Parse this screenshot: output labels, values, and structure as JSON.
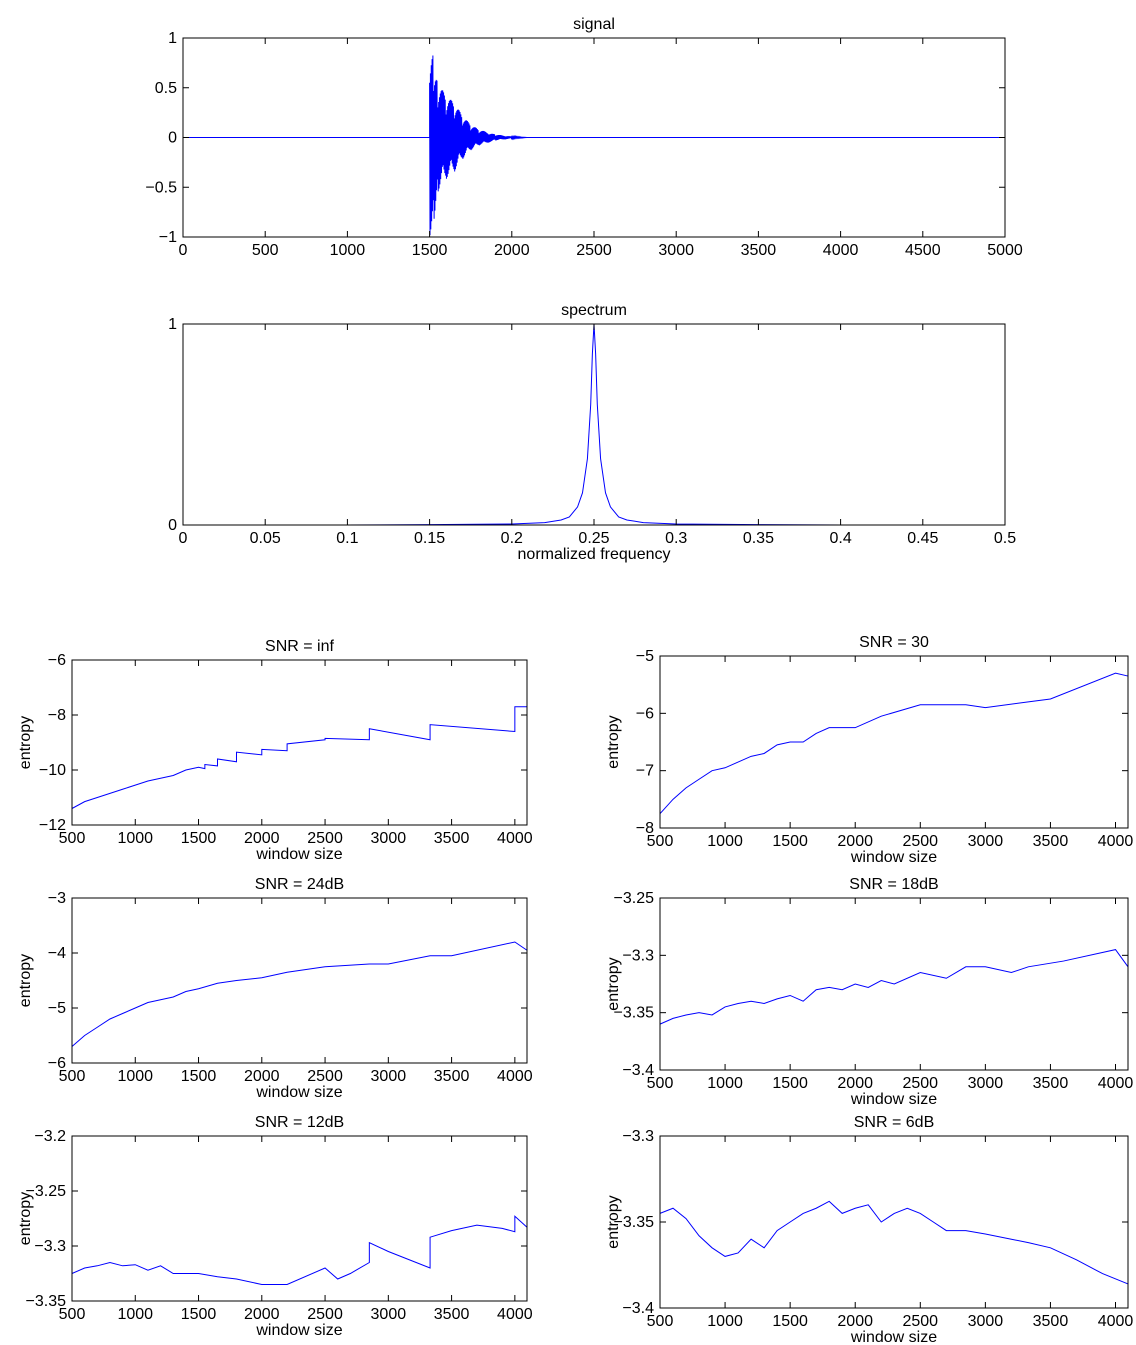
{
  "chart_data": [
    {
      "id": "signal",
      "type": "line",
      "title": "signal",
      "xlabel": "",
      "ylabel": "",
      "xlim": [
        0,
        5000
      ],
      "ylim": [
        -1,
        1
      ],
      "xticks": [
        0,
        500,
        1000,
        1500,
        2000,
        2500,
        3000,
        3500,
        4000,
        4500,
        5000
      ],
      "yticks": [
        -1,
        -0.5,
        0,
        0.5,
        1
      ],
      "xtick_labels": [
        "0",
        "500",
        "1000",
        "1500",
        "2000",
        "2500",
        "3000",
        "3500",
        "4000",
        "4500",
        "5000"
      ],
      "ytick_labels": [
        "−1",
        "−0.5",
        "0",
        "0.5",
        "1"
      ],
      "grid": false,
      "color": "#0000ff",
      "series": [
        {
          "kind": "decaying_oscillation",
          "x": [
            0,
            1500,
            1500,
            1525,
            1550,
            1600,
            1650,
            1700,
            1750,
            1800,
            1900,
            2000,
            2100,
            5000
          ],
          "envelope": [
            0,
            0,
            1.0,
            0.85,
            0.55,
            0.42,
            0.35,
            0.22,
            0.13,
            0.08,
            0.03,
            0.01,
            0.0,
            0.0
          ]
        }
      ]
    },
    {
      "id": "spectrum",
      "type": "line",
      "title": "spectrum",
      "xlabel": "normalized frequency",
      "ylabel": "",
      "xlim": [
        0,
        0.5
      ],
      "ylim": [
        0,
        1
      ],
      "xticks": [
        0,
        0.05,
        0.1,
        0.15,
        0.2,
        0.25,
        0.3,
        0.35,
        0.4,
        0.45,
        0.5
      ],
      "yticks": [
        0,
        1
      ],
      "xtick_labels": [
        "0",
        "0.05",
        "0.1",
        "0.15",
        "0.2",
        "0.25",
        "0.3",
        "0.35",
        "0.4",
        "0.45",
        "0.5"
      ],
      "ytick_labels": [
        "0",
        "1"
      ],
      "grid": false,
      "color": "#0000ff",
      "series": [
        {
          "x": [
            0,
            0.1,
            0.15,
            0.2,
            0.22,
            0.23,
            0.235,
            0.24,
            0.243,
            0.246,
            0.248,
            0.249,
            0.25,
            0.251,
            0.252,
            0.254,
            0.257,
            0.26,
            0.265,
            0.27,
            0.28,
            0.3,
            0.35,
            0.4,
            0.5
          ],
          "y": [
            0,
            0,
            0.002,
            0.005,
            0.012,
            0.025,
            0.04,
            0.09,
            0.16,
            0.33,
            0.6,
            0.85,
            1.0,
            0.85,
            0.6,
            0.33,
            0.16,
            0.09,
            0.04,
            0.025,
            0.012,
            0.005,
            0.002,
            0,
            0
          ]
        }
      ]
    },
    {
      "id": "snr-inf",
      "type": "line",
      "title": "SNR = inf",
      "xlabel": "window size",
      "ylabel": "entropy",
      "xlim": [
        500,
        4096
      ],
      "ylim": [
        -12,
        -6
      ],
      "xticks": [
        500,
        1000,
        1500,
        2000,
        2500,
        3000,
        3500,
        4000
      ],
      "yticks": [
        -12,
        -10,
        -8,
        -6
      ],
      "xtick_labels": [
        "500",
        "1000",
        "1500",
        "2000",
        "2500",
        "3000",
        "3500",
        "4000"
      ],
      "ytick_labels": [
        "−12",
        "−10",
        "−8",
        "−6"
      ],
      "grid": false,
      "color": "#0000ff",
      "series": [
        {
          "x": [
            500,
            600,
            700,
            800,
            900,
            1000,
            1100,
            1200,
            1300,
            1400,
            1500,
            1550,
            1550,
            1650,
            1650,
            1800,
            1800,
            2000,
            2000,
            2200,
            2200,
            2500,
            2500,
            2850,
            2850,
            3330,
            3330,
            4000,
            4000,
            4096
          ],
          "y": [
            -11.4,
            -11.15,
            -11.0,
            -10.85,
            -10.7,
            -10.55,
            -10.4,
            -10.3,
            -10.2,
            -10.0,
            -9.9,
            -9.95,
            -9.8,
            -9.85,
            -9.6,
            -9.7,
            -9.35,
            -9.45,
            -9.25,
            -9.3,
            -9.05,
            -8.9,
            -8.85,
            -8.9,
            -8.5,
            -8.9,
            -8.35,
            -8.6,
            -7.7,
            -7.7
          ]
        }
      ]
    },
    {
      "id": "snr-30",
      "type": "line",
      "title": "SNR = 30",
      "xlabel": "window size",
      "ylabel": "entropy",
      "xlim": [
        500,
        4096
      ],
      "ylim": [
        -8,
        -5
      ],
      "xticks": [
        500,
        1000,
        1500,
        2000,
        2500,
        3000,
        3500,
        4000
      ],
      "yticks": [
        -8,
        -7,
        -6,
        -5
      ],
      "xtick_labels": [
        "500",
        "1000",
        "1500",
        "2000",
        "2500",
        "3000",
        "3500",
        "4000"
      ],
      "ytick_labels": [
        "−8",
        "−7",
        "−6",
        "−5"
      ],
      "grid": false,
      "color": "#0000ff",
      "series": [
        {
          "x": [
            500,
            600,
            700,
            800,
            900,
            1000,
            1100,
            1200,
            1300,
            1400,
            1500,
            1600,
            1700,
            1800,
            2000,
            2200,
            2500,
            2850,
            3000,
            3330,
            3500,
            4000,
            4096
          ],
          "y": [
            -7.75,
            -7.5,
            -7.3,
            -7.15,
            -7.0,
            -6.95,
            -6.85,
            -6.75,
            -6.7,
            -6.55,
            -6.5,
            -6.5,
            -6.35,
            -6.25,
            -6.25,
            -6.05,
            -5.85,
            -5.85,
            -5.9,
            -5.8,
            -5.75,
            -5.3,
            -5.35
          ]
        }
      ]
    },
    {
      "id": "snr-24db",
      "type": "line",
      "title": "SNR = 24dB",
      "xlabel": "window size",
      "ylabel": "entropy",
      "xlim": [
        500,
        4096
      ],
      "ylim": [
        -6,
        -3
      ],
      "xticks": [
        500,
        1000,
        1500,
        2000,
        2500,
        3000,
        3500,
        4000
      ],
      "yticks": [
        -6,
        -5,
        -4,
        -3
      ],
      "xtick_labels": [
        "500",
        "1000",
        "1500",
        "2000",
        "2500",
        "3000",
        "3500",
        "4000"
      ],
      "ytick_labels": [
        "−6",
        "−5",
        "−4",
        "−3"
      ],
      "grid": false,
      "color": "#0000ff",
      "series": [
        {
          "x": [
            500,
            600,
            700,
            800,
            900,
            1000,
            1100,
            1200,
            1300,
            1400,
            1500,
            1650,
            1800,
            2000,
            2200,
            2500,
            2850,
            3000,
            3330,
            3500,
            4000,
            4096
          ],
          "y": [
            -5.7,
            -5.5,
            -5.35,
            -5.2,
            -5.1,
            -5.0,
            -4.9,
            -4.85,
            -4.8,
            -4.7,
            -4.65,
            -4.55,
            -4.5,
            -4.45,
            -4.35,
            -4.25,
            -4.2,
            -4.2,
            -4.05,
            -4.05,
            -3.8,
            -3.95
          ]
        }
      ]
    },
    {
      "id": "snr-18db",
      "type": "line",
      "title": "SNR = 18dB",
      "xlabel": "window size",
      "ylabel": "entropy",
      "xlim": [
        500,
        4096
      ],
      "ylim": [
        -3.4,
        -3.25
      ],
      "xticks": [
        500,
        1000,
        1500,
        2000,
        2500,
        3000,
        3500,
        4000
      ],
      "yticks": [
        -3.4,
        -3.35,
        -3.3,
        -3.25
      ],
      "xtick_labels": [
        "500",
        "1000",
        "1500",
        "2000",
        "2500",
        "3000",
        "3500",
        "4000"
      ],
      "ytick_labels": [
        "−3.4",
        "−3.35",
        "−3.3",
        "−3.25"
      ],
      "grid": false,
      "color": "#0000ff",
      "series": [
        {
          "x": [
            500,
            600,
            700,
            800,
            900,
            1000,
            1100,
            1200,
            1300,
            1400,
            1500,
            1600,
            1700,
            1800,
            1900,
            2000,
            2100,
            2200,
            2300,
            2500,
            2700,
            2850,
            3000,
            3200,
            3330,
            3600,
            4000,
            4096
          ],
          "y": [
            -3.36,
            -3.355,
            -3.352,
            -3.35,
            -3.352,
            -3.345,
            -3.342,
            -3.34,
            -3.342,
            -3.338,
            -3.335,
            -3.34,
            -3.33,
            -3.328,
            -3.33,
            -3.325,
            -3.328,
            -3.322,
            -3.325,
            -3.315,
            -3.32,
            -3.31,
            -3.31,
            -3.315,
            -3.31,
            -3.305,
            -3.295,
            -3.31
          ]
        }
      ]
    },
    {
      "id": "snr-12db",
      "type": "line",
      "title": "SNR = 12dB",
      "xlabel": "window size",
      "ylabel": "entropy",
      "xlim": [
        500,
        4096
      ],
      "ylim": [
        -3.35,
        -3.2
      ],
      "xticks": [
        500,
        1000,
        1500,
        2000,
        2500,
        3000,
        3500,
        4000
      ],
      "yticks": [
        -3.35,
        -3.3,
        -3.25,
        -3.2
      ],
      "xtick_labels": [
        "500",
        "1000",
        "1500",
        "2000",
        "2500",
        "3000",
        "3500",
        "4000"
      ],
      "ytick_labels": [
        "−3.35",
        "−3.3",
        "−3.25",
        "−3.2"
      ],
      "grid": false,
      "color": "#0000ff",
      "series": [
        {
          "x": [
            500,
            600,
            700,
            800,
            900,
            1000,
            1100,
            1200,
            1300,
            1500,
            1650,
            1800,
            2000,
            2200,
            2500,
            2600,
            2700,
            2850,
            2850,
            3000,
            3330,
            3330,
            3500,
            3700,
            3900,
            4000,
            4000,
            4096
          ],
          "y": [
            -3.325,
            -3.32,
            -3.318,
            -3.315,
            -3.318,
            -3.317,
            -3.322,
            -3.318,
            -3.325,
            -3.325,
            -3.328,
            -3.33,
            -3.335,
            -3.335,
            -3.32,
            -3.33,
            -3.325,
            -3.315,
            -3.297,
            -3.305,
            -3.32,
            -3.292,
            -3.286,
            -3.281,
            -3.284,
            -3.287,
            -3.273,
            -3.283
          ]
        }
      ]
    },
    {
      "id": "snr-6db",
      "type": "line",
      "title": "SNR = 6dB",
      "xlabel": "window size",
      "ylabel": "entropy",
      "xlim": [
        500,
        4096
      ],
      "ylim": [
        -3.4,
        -3.3
      ],
      "xticks": [
        500,
        1000,
        1500,
        2000,
        2500,
        3000,
        3500,
        4000
      ],
      "yticks": [
        -3.4,
        -3.35,
        -3.3
      ],
      "xtick_labels": [
        "500",
        "1000",
        "1500",
        "2000",
        "2500",
        "3000",
        "3500",
        "4000"
      ],
      "ytick_labels": [
        "−3.4",
        "−3.35",
        "−3.3"
      ],
      "grid": false,
      "color": "#0000ff",
      "series": [
        {
          "x": [
            500,
            600,
            700,
            800,
            900,
            1000,
            1100,
            1200,
            1300,
            1400,
            1500,
            1600,
            1700,
            1800,
            1900,
            2000,
            2100,
            2200,
            2300,
            2400,
            2500,
            2600,
            2700,
            2850,
            3000,
            3200,
            3330,
            3500,
            3700,
            3900,
            4096
          ],
          "y": [
            -3.345,
            -3.342,
            -3.348,
            -3.358,
            -3.365,
            -3.37,
            -3.368,
            -3.36,
            -3.365,
            -3.355,
            -3.35,
            -3.345,
            -3.342,
            -3.338,
            -3.345,
            -3.342,
            -3.34,
            -3.35,
            -3.345,
            -3.342,
            -3.345,
            -3.35,
            -3.355,
            -3.355,
            -3.357,
            -3.36,
            -3.362,
            -3.365,
            -3.372,
            -3.38,
            -3.386
          ]
        }
      ]
    }
  ]
}
